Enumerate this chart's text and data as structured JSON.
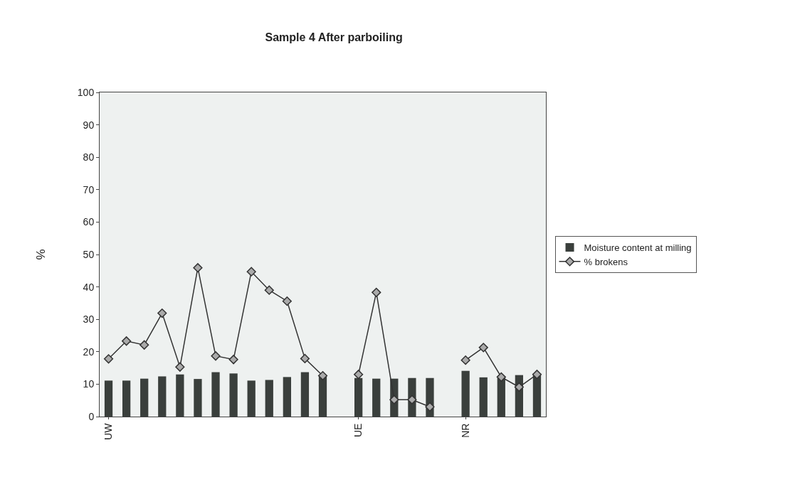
{
  "chart_data": {
    "type": "bar",
    "title": "Sample 4 After parboiling",
    "ylabel": "%",
    "categories": [
      "UW",
      null,
      null,
      null,
      null,
      null,
      null,
      null,
      null,
      null,
      null,
      null,
      null,
      null,
      "UE",
      null,
      null,
      null,
      null,
      null,
      "NR",
      null,
      null,
      null,
      null
    ],
    "series": [
      {
        "name": "Moisture content at milling",
        "color": "#3a3f3c",
        "values": [
          11.1,
          11.1,
          11.7,
          12.4,
          13.0,
          11.6,
          13.7,
          13.3,
          11.1,
          11.3,
          12.2,
          13.7,
          12.6,
          null,
          11.9,
          11.7,
          11.7,
          11.9,
          11.9,
          null,
          14.1,
          12.1,
          12.4,
          12.8,
          13.3
        ]
      },
      {
        "name": "% brokens",
        "type": "line",
        "color": "#333333",
        "marker": "diamond",
        "values": [
          17.8,
          23.3,
          22.1,
          31.9,
          15.3,
          45.9,
          18.7,
          17.6,
          44.7,
          39.0,
          35.6,
          17.9,
          12.6,
          null,
          13.0,
          38.3,
          5.2,
          5.2,
          3.0,
          null,
          17.4,
          21.3,
          12.2,
          9.1,
          13.0
        ]
      }
    ],
    "ylim": [
      0,
      100
    ],
    "yticks": [
      0,
      10,
      20,
      30,
      40,
      50,
      60,
      70,
      80,
      90,
      100
    ],
    "grid": false,
    "legend": "right"
  }
}
